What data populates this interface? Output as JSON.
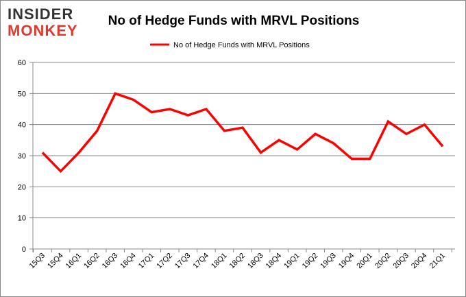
{
  "logo": {
    "line1": "INSIDER",
    "line2": "MONKEY"
  },
  "chart_data": {
    "type": "line",
    "title": "No of Hedge Funds with MRVL Positions",
    "xlabel": "",
    "ylabel": "",
    "ylim": [
      0,
      60
    ],
    "yticks": [
      0,
      10,
      20,
      30,
      40,
      50,
      60
    ],
    "grid": true,
    "legend": "top-center",
    "categories": [
      "15Q3",
      "15Q4",
      "16Q1",
      "16Q2",
      "16Q3",
      "16Q4",
      "17Q1",
      "17Q2",
      "17Q3",
      "17Q4",
      "18Q1",
      "18Q2",
      "18Q3",
      "18Q4",
      "19Q1",
      "19Q2",
      "19Q3",
      "19Q4",
      "20Q1",
      "20Q2",
      "20Q3",
      "20Q4",
      "21Q1"
    ],
    "series": [
      {
        "name": "No of Hedge Funds with MRVL Positions",
        "color": "#ff0000",
        "values": [
          31,
          25,
          31,
          38,
          50,
          48,
          44,
          45,
          43,
          45,
          38,
          39,
          31,
          35,
          32,
          37,
          34,
          29,
          29,
          41,
          37,
          40,
          33
        ]
      }
    ]
  }
}
